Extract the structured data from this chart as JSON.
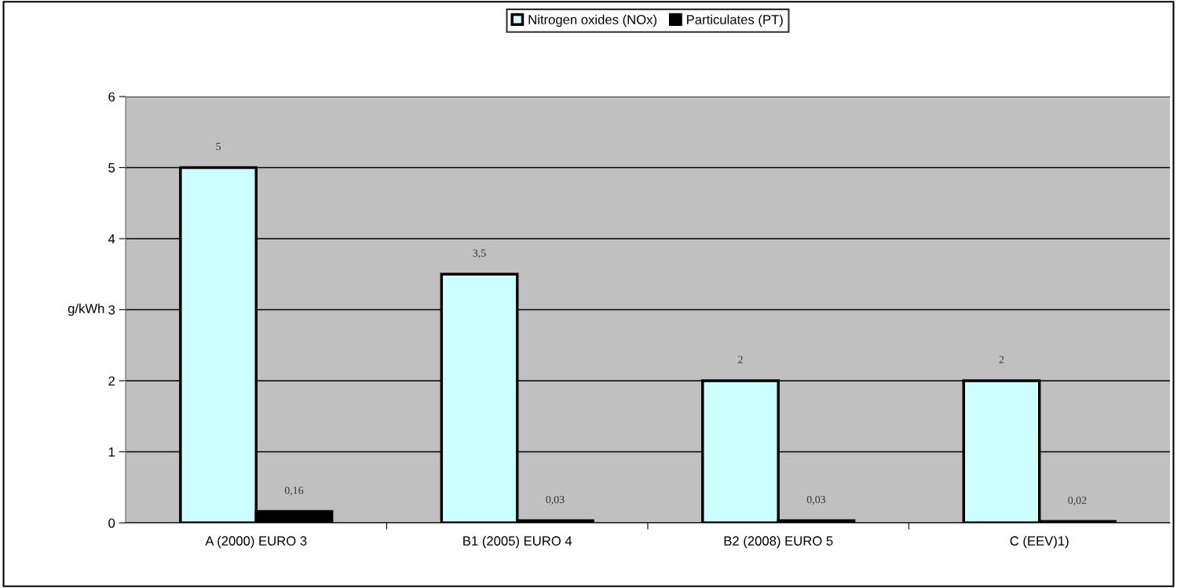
{
  "chart_data": {
    "type": "bar",
    "ylabel": "g/kWh",
    "categories": [
      "A (2000) EURO 3",
      "B1 (2005) EURO 4",
      "B2 (2008) EURO 5",
      "C (EEV)1)"
    ],
    "series": [
      {
        "name": "Nitrogen oxides (NOx)",
        "color": "#ccffff",
        "values": [
          5,
          3.5,
          2,
          2
        ],
        "value_labels": [
          "5",
          "3,5",
          "2",
          "2"
        ]
      },
      {
        "name": "Particulates (PT)",
        "color": "#000000",
        "values": [
          0.16,
          0.03,
          0.03,
          0.02
        ],
        "value_labels": [
          "0,16",
          "0,03",
          "0,03",
          "0,02"
        ]
      }
    ],
    "ylim": [
      0,
      6
    ],
    "yticks": [
      0,
      1,
      2,
      3,
      4,
      5,
      6
    ],
    "grid": "y",
    "legend": "top"
  }
}
